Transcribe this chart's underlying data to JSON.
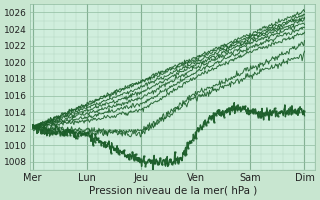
{
  "bg_color": "#c8e6d0",
  "plot_bg_color": "#d0eedd",
  "grid_color_major": "#90bca0",
  "grid_color_minor": "#b0d4be",
  "line_color": "#1a5c28",
  "ylim": [
    1007,
    1027
  ],
  "yticks": [
    1008,
    1010,
    1012,
    1014,
    1016,
    1018,
    1020,
    1022,
    1024,
    1026
  ],
  "xlabel": "Pression niveau de la mer( hPa )",
  "day_labels": [
    "Mer",
    "Lun",
    "Jeu",
    "Ven",
    "Sam",
    "Dim"
  ],
  "day_positions": [
    0,
    1,
    2,
    3,
    4,
    5
  ],
  "label_fontsize": 7.0,
  "xlabel_fontsize": 7.5
}
